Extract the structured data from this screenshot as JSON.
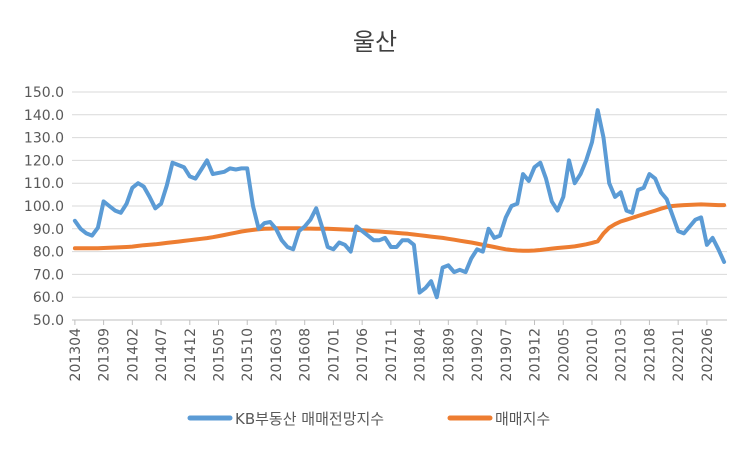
{
  "chart_data": {
    "type": "line",
    "title": "울산",
    "xlabel": "",
    "ylabel": "",
    "ylim": [
      50,
      150
    ],
    "yticks": [
      "150.0",
      "140.0",
      "130.0",
      "120.0",
      "110.0",
      "100.0",
      "90.0",
      "80.0",
      "70.0",
      "60.0",
      "50.0"
    ],
    "grid": true,
    "legend_position": "bottom",
    "x_tick_labels": [
      "201304",
      "201309",
      "201402",
      "201407",
      "201412",
      "201505",
      "201510",
      "201603",
      "201608",
      "201701",
      "201706",
      "201711",
      "201804",
      "201809",
      "201902",
      "201907",
      "201912",
      "202005",
      "202010",
      "202103",
      "202108",
      "202201",
      "202206"
    ],
    "x_tick_start": 0,
    "x_tick_step": 5,
    "x": [
      "201304",
      "201305",
      "201306",
      "201307",
      "201308",
      "201309",
      "201310",
      "201311",
      "201312",
      "201401",
      "201402",
      "201403",
      "201404",
      "201405",
      "201406",
      "201407",
      "201408",
      "201409",
      "201410",
      "201411",
      "201412",
      "201501",
      "201502",
      "201503",
      "201504",
      "201505",
      "201506",
      "201507",
      "201508",
      "201509",
      "201510",
      "201511",
      "201512",
      "201601",
      "201602",
      "201603",
      "201604",
      "201605",
      "201606",
      "201607",
      "201608",
      "201609",
      "201610",
      "201611",
      "201612",
      "201701",
      "201702",
      "201703",
      "201704",
      "201705",
      "201706",
      "201707",
      "201708",
      "201709",
      "201710",
      "201711",
      "201712",
      "201801",
      "201802",
      "201803",
      "201804",
      "201805",
      "201806",
      "201807",
      "201808",
      "201809",
      "201810",
      "201811",
      "201812",
      "201901",
      "201902",
      "201903",
      "201904",
      "201905",
      "201906",
      "201907",
      "201908",
      "201909",
      "201910",
      "201911",
      "201912",
      "202001",
      "202002",
      "202003",
      "202004",
      "202005",
      "202006",
      "202007",
      "202008",
      "202009",
      "202010",
      "202011",
      "202012",
      "202101",
      "202102",
      "202103",
      "202104",
      "202105",
      "202106",
      "202107",
      "202108",
      "202109",
      "202110",
      "202111",
      "202112",
      "202201",
      "202202",
      "202203",
      "202204",
      "202205",
      "202206",
      "202207",
      "202208",
      "202209"
    ],
    "series": [
      {
        "name": "KB부동산 매매전망지수",
        "color": "#5B9BD5",
        "values": [
          93.5,
          90,
          88,
          87,
          90.5,
          102,
          100,
          98,
          97,
          101,
          108,
          110,
          108.5,
          104,
          99,
          101,
          109,
          119,
          118,
          117,
          113,
          112,
          116,
          120,
          114,
          114.5,
          115,
          116.5,
          116,
          116.5,
          116.5,
          100,
          90,
          92.5,
          93,
          90,
          85,
          82,
          81,
          89,
          91,
          94,
          99,
          91,
          82,
          81,
          84,
          83,
          80,
          91,
          89,
          87,
          85,
          85,
          86,
          82,
          82,
          85,
          85,
          83,
          62,
          64,
          67,
          60,
          73,
          74,
          71,
          72,
          71,
          77,
          81,
          80,
          90,
          86,
          87,
          95,
          100,
          101,
          114,
          111,
          117,
          119,
          112,
          102,
          98,
          104,
          120,
          110,
          114,
          120,
          128,
          142,
          130,
          110,
          104,
          106,
          98,
          97,
          107,
          108,
          114,
          112,
          106,
          103,
          96,
          89,
          88,
          91,
          94,
          95,
          83,
          86,
          81,
          75.5
        ]
      },
      {
        "name": "매매지수",
        "color": "#ED7D31",
        "values": [
          81.5,
          81.5,
          81.5,
          81.5,
          81.5,
          81.6,
          81.7,
          81.8,
          81.9,
          82,
          82.2,
          82.5,
          82.8,
          83,
          83.2,
          83.5,
          83.8,
          84.1,
          84.4,
          84.7,
          85,
          85.3,
          85.6,
          85.9,
          86.3,
          86.8,
          87.3,
          87.8,
          88.3,
          88.8,
          89.2,
          89.5,
          89.8,
          90,
          90.1,
          90.2,
          90.2,
          90.2,
          90.2,
          90.2,
          90.1,
          90.1,
          90,
          90,
          90,
          89.9,
          89.8,
          89.7,
          89.6,
          89.5,
          89.4,
          89.2,
          89,
          88.8,
          88.6,
          88.4,
          88.2,
          88,
          87.8,
          87.5,
          87.2,
          86.9,
          86.6,
          86.3,
          86,
          85.6,
          85.2,
          84.8,
          84.4,
          84,
          83.5,
          83,
          82.5,
          82,
          81.5,
          81,
          80.7,
          80.5,
          80.4,
          80.4,
          80.5,
          80.7,
          81,
          81.3,
          81.6,
          81.8,
          82,
          82.3,
          82.7,
          83.2,
          83.8,
          84.5,
          88,
          90.5,
          92,
          93.2,
          94,
          94.8,
          95.6,
          96.4,
          97.2,
          98,
          98.8,
          99.5,
          100,
          100.2,
          100.4,
          100.5,
          100.6,
          100.7,
          100.6,
          100.5,
          100.4,
          100.4
        ]
      }
    ]
  }
}
